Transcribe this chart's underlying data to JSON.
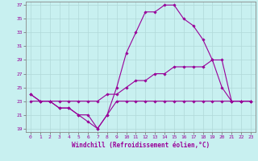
{
  "xlabel": "Windchill (Refroidissement éolien,°C)",
  "bg_color": "#c8f0f0",
  "line_color": "#990099",
  "grid_color": "#b0d8d8",
  "xlim": [
    -0.5,
    23.5
  ],
  "ylim": [
    18.5,
    37.5
  ],
  "xticks": [
    0,
    1,
    2,
    3,
    4,
    5,
    6,
    7,
    8,
    9,
    10,
    11,
    12,
    13,
    14,
    15,
    16,
    17,
    18,
    19,
    20,
    21,
    22,
    23
  ],
  "yticks": [
    19,
    21,
    23,
    25,
    27,
    29,
    31,
    33,
    35,
    37
  ],
  "line1_x": [
    0,
    1,
    2,
    3,
    4,
    5,
    6,
    7,
    8,
    9,
    10,
    11,
    12,
    13,
    14,
    15,
    16,
    17,
    18,
    19,
    20,
    21,
    22,
    23
  ],
  "line1_y": [
    24,
    23,
    23,
    22,
    22,
    21,
    21,
    19,
    21,
    23,
    23,
    23,
    23,
    23,
    23,
    23,
    23,
    23,
    23,
    23,
    23,
    23,
    23,
    23
  ],
  "line2_x": [
    0,
    1,
    2,
    3,
    4,
    5,
    6,
    7,
    8,
    9,
    10,
    11,
    12,
    13,
    14,
    15,
    16,
    17,
    18,
    19,
    20,
    21,
    22,
    23
  ],
  "line2_y": [
    23,
    23,
    23,
    23,
    23,
    23,
    23,
    23,
    24,
    24,
    25,
    26,
    26,
    27,
    27,
    28,
    28,
    28,
    28,
    29,
    29,
    23,
    23,
    23
  ],
  "line3_x": [
    0,
    1,
    2,
    3,
    4,
    5,
    6,
    7,
    8,
    9,
    10,
    11,
    12,
    13,
    14,
    15,
    16,
    17,
    18,
    19,
    20,
    21,
    22,
    23
  ],
  "line3_y": [
    24,
    23,
    23,
    22,
    22,
    21,
    20,
    19,
    21,
    25,
    30,
    33,
    36,
    36,
    37,
    37,
    35,
    34,
    32,
    29,
    25,
    23,
    23,
    23
  ],
  "marker": "D",
  "markersize": 1.8,
  "linewidth": 0.8,
  "tick_fontsize": 4.5,
  "label_fontsize": 5.5
}
